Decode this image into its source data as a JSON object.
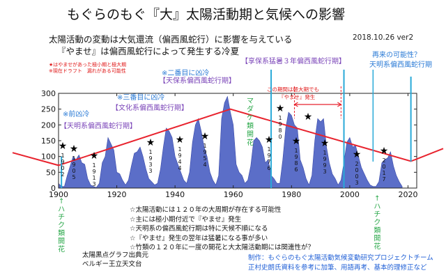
{
  "title": "もぐらのもぐ『大』太陽活動期と気候への影響",
  "subtitle": [
    "太陽活動の変動は大気還流（偏西風蛇行）に影響を与えている",
    "『やませ』は偏西風蛇行によって発生する冷夏"
  ],
  "date_label": "2018.10.26 ver2",
  "red_notes": [
    "★はやませがあった極小期と極大期",
    "※現在ドラフト　漏れがある可能性"
  ],
  "annotations": {
    "tenmei": [
      "※前凶冷",
      "【天明系偏西風蛇行期】"
    ],
    "bunka": [
      "※三番目に凶冷",
      "【文化系偏西風蛇行期】"
    ],
    "tenpo": [
      "※二番目に凶冷",
      "【天保系偏西風蛇行期】"
    ],
    "kyoho": "【享保系猛暑３年偏西風蛇行期】",
    "madake": "マダケ類開花",
    "range_note": [
      "この期間は極大期でも",
      "『やませ』発生"
    ],
    "future": [
      "再来の可能性？",
      "天明系偏西風蛇行期"
    ],
    "hachiku": "↑ハチク類開花"
  },
  "star_years": [
    "1902",
    "1905",
    "1913",
    "1933",
    "1944",
    "1954",
    "1976",
    "1980",
    "1986",
    "1993",
    "2003",
    "2017"
  ],
  "bullets": [
    "☆太陽活動には１２０年の大周期が存在する可能性",
    "☆主には極小期付近で『やませ』発生",
    "☆天明系の偏西風蛇行期は特に天候不順になる",
    "☆『やませ』発生の翌年は猛暑になる事が多い",
    "☆竹類の１２０年に一度の開花と大太陽活動期には関連性が？"
  ],
  "source": [
    "太陽黒点グラフ出典元",
    "ベルギー王立天文台"
  ],
  "credit": [
    "制作：もぐらのもぐ太陽活動気候変動研究プロジェクトチーム",
    "正村史朗氏資料を参考に加筆、用語再考、基本的理修正など"
  ],
  "colors": {
    "fill": "#5b6ec8",
    "trend": "#e8232e",
    "marker_line": "#29a9d8",
    "red": "#e01818",
    "range": "#e8232e"
  },
  "chart_data": {
    "type": "area",
    "title": "",
    "xlabel": "",
    "ylabel": "",
    "xlim": [
      1900,
      2023
    ],
    "ylim": [
      0,
      300
    ],
    "xticks": [
      "1900",
      "1920",
      "1940",
      "1960",
      "1980",
      "2000",
      "2020"
    ],
    "yticks": [
      "0",
      "50",
      "100",
      "150",
      "200",
      "250",
      "300"
    ],
    "grid": false,
    "series": [
      {
        "x": [
          1900,
          1901,
          1902,
          1903,
          1904,
          1905,
          1906,
          1907,
          1908,
          1909,
          1910,
          1911,
          1912,
          1913,
          1914,
          1915,
          1916,
          1917,
          1918,
          1919,
          1920,
          1921,
          1922,
          1923,
          1924,
          1925,
          1926,
          1927,
          1928,
          1929,
          1930,
          1931,
          1932,
          1933,
          1934,
          1935,
          1936,
          1937,
          1938,
          1939,
          1940,
          1941,
          1942,
          1943,
          1944,
          1945,
          1946,
          1947,
          1948,
          1949,
          1950,
          1951,
          1952,
          1953,
          1954,
          1955,
          1956,
          1957,
          1958,
          1959,
          1960,
          1961,
          1962,
          1963,
          1964,
          1965,
          1966,
          1967,
          1968,
          1969,
          1970,
          1971,
          1972,
          1973,
          1974,
          1975,
          1976,
          1977,
          1978,
          1979,
          1980,
          1981,
          1982,
          1983,
          1984,
          1985,
          1986,
          1987,
          1988,
          1989,
          1990,
          1991,
          1992,
          1993,
          1994,
          1995,
          1996,
          1997,
          1998,
          1999,
          2000,
          2001,
          2002,
          2003,
          2004,
          2005,
          2006,
          2007,
          2008,
          2009,
          2010,
          2011,
          2012,
          2013,
          2014,
          2015,
          2016,
          2017,
          2018
        ],
        "values": [
          15,
          5,
          5,
          40,
          70,
          100,
          90,
          105,
          80,
          75,
          30,
          10,
          5,
          2,
          15,
          80,
          100,
          160,
          140,
          120,
          50,
          45,
          25,
          10,
          25,
          70,
          110,
          115,
          130,
          100,
          60,
          30,
          20,
          10,
          15,
          60,
          130,
          190,
          180,
          160,
          100,
          75,
          50,
          25,
          15,
          50,
          145,
          200,
          220,
          180,
          130,
          100,
          50,
          25,
          10,
          40,
          220,
          270,
          290,
          240,
          200,
          75,
          50,
          40,
          15,
          25,
          70,
          150,
          160,
          150,
          130,
          80,
          90,
          40,
          30,
          15,
          15,
          90,
          190,
          240,
          230,
          200,
          190,
          90,
          65,
          30,
          10,
          40,
          150,
          220,
          210,
          220,
          130,
          80,
          45,
          30,
          10,
          25,
          80,
          145,
          160,
          130,
          135,
          100,
          65,
          45,
          25,
          10,
          5,
          5,
          20,
          80,
          90,
          95,
          115,
          70,
          40,
          20,
          5
        ]
      }
    ],
    "trend_line": {
      "x": [
        1900,
        1959,
        2021,
        2023
      ],
      "values": [
        72,
        250,
        85,
        92
      ]
    }
  }
}
